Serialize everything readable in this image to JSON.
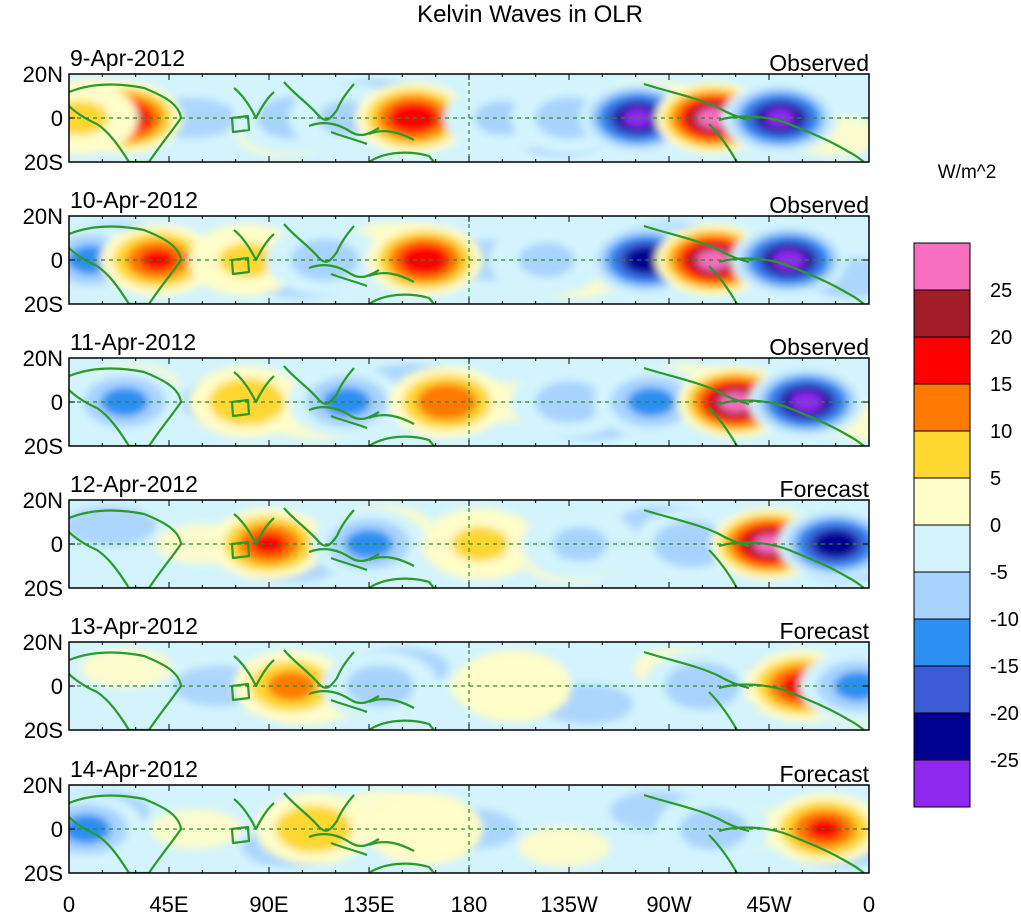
{
  "chart_data": {
    "type": "heatmap",
    "title": "Kelvin Waves in OLR",
    "variable": "OLR anomaly (Kelvin wave filtered)",
    "units": "W/m^2",
    "x_ticks": [
      "0",
      "45E",
      "90E",
      "135E",
      "180",
      "135W",
      "90W",
      "45W",
      "0"
    ],
    "y_ticks": [
      "20N",
      "0",
      "20S"
    ],
    "colorbar": {
      "labels": [
        "25",
        "20",
        "15",
        "10",
        "5",
        "0",
        "-5",
        "-10",
        "-15",
        "-20",
        "-25"
      ],
      "bins": [
        {
          "range": ">25",
          "color": "#f76ebf"
        },
        {
          "range": "20 to 25",
          "color": "#a21d27"
        },
        {
          "range": "15 to 20",
          "color": "#ff0000"
        },
        {
          "range": "10 to 15",
          "color": "#ff7a00"
        },
        {
          "range": "5 to 10",
          "color": "#ffd731"
        },
        {
          "range": "0 to 5",
          "color": "#fffdc8"
        },
        {
          "range": "-5 to 0",
          "color": "#d3f4fd"
        },
        {
          "range": "-10 to -5",
          "color": "#a8d3fe"
        },
        {
          "range": "-15 to -10",
          "color": "#2c8ff2"
        },
        {
          "range": "-20 to -15",
          "color": "#3c5bd6"
        },
        {
          "range": "-25 to -20",
          "color": "#000091"
        },
        {
          "range": "<-25",
          "color": "#8f29f0"
        }
      ]
    },
    "panels": [
      {
        "date": "9-Apr-2012",
        "label": "Observed",
        "anomalies": [
          {
            "lon_e": 25,
            "lat": 0,
            "value": 22
          },
          {
            "lon_e": 5,
            "lat": 0,
            "value": 6
          },
          {
            "lon_e": 100,
            "lat": 0,
            "value": -8
          },
          {
            "lon_e": 125,
            "lat": 0,
            "value": -6
          },
          {
            "lon_e": 155,
            "lat": 0,
            "value": 20
          },
          {
            "lon_e": 195,
            "lat": 0,
            "value": -6
          },
          {
            "lon_e": 225,
            "lat": 0,
            "value": -8
          },
          {
            "lon_e": 256,
            "lat": 0,
            "value": -26
          },
          {
            "lon_e": 290,
            "lat": 0,
            "value": 27
          },
          {
            "lon_e": 320,
            "lat": 0,
            "value": -26
          }
        ]
      },
      {
        "date": "10-Apr-2012",
        "label": "Observed",
        "anomalies": [
          {
            "lon_e": 10,
            "lat": 0,
            "value": -12
          },
          {
            "lon_e": 40,
            "lat": 0,
            "value": 16
          },
          {
            "lon_e": 80,
            "lat": 0,
            "value": 6
          },
          {
            "lon_e": 115,
            "lat": 0,
            "value": -8
          },
          {
            "lon_e": 160,
            "lat": 0,
            "value": 20
          },
          {
            "lon_e": 215,
            "lat": 0,
            "value": -6
          },
          {
            "lon_e": 260,
            "lat": 0,
            "value": -25
          },
          {
            "lon_e": 290,
            "lat": 0,
            "value": 27
          },
          {
            "lon_e": 324,
            "lat": 0,
            "value": -27
          }
        ]
      },
      {
        "date": "11-Apr-2012",
        "label": "Observed",
        "anomalies": [
          {
            "lon_e": 25,
            "lat": 0,
            "value": -12
          },
          {
            "lon_e": 80,
            "lat": 0,
            "value": 10
          },
          {
            "lon_e": 125,
            "lat": 0,
            "value": -12
          },
          {
            "lon_e": 170,
            "lat": 0,
            "value": 15
          },
          {
            "lon_e": 225,
            "lat": 0,
            "value": -8
          },
          {
            "lon_e": 262,
            "lat": 0,
            "value": -12
          },
          {
            "lon_e": 300,
            "lat": 0,
            "value": 27
          },
          {
            "lon_e": 332,
            "lat": 0,
            "value": -27
          }
        ]
      },
      {
        "date": "12-Apr-2012",
        "label": "Forecast",
        "anomalies": [
          {
            "lon_e": 90,
            "lat": 0,
            "value": 16
          },
          {
            "lon_e": 135,
            "lat": 0,
            "value": -12
          },
          {
            "lon_e": 185,
            "lat": 0,
            "value": 6
          },
          {
            "lon_e": 230,
            "lat": 0,
            "value": -6
          },
          {
            "lon_e": 280,
            "lat": 0,
            "value": -10
          },
          {
            "lon_e": 315,
            "lat": 0,
            "value": 26
          },
          {
            "lon_e": 345,
            "lat": 0,
            "value": -25
          }
        ]
      },
      {
        "date": "13-Apr-2012",
        "label": "Forecast",
        "anomalies": [
          {
            "lon_e": 100,
            "lat": 0,
            "value": 12
          },
          {
            "lon_e": 140,
            "lat": 0,
            "value": -8
          },
          {
            "lon_e": 200,
            "lat": 0,
            "value": 4
          },
          {
            "lon_e": 285,
            "lat": 0,
            "value": -10
          },
          {
            "lon_e": 330,
            "lat": 0,
            "value": 18
          },
          {
            "lon_e": 355,
            "lat": 0,
            "value": -12
          }
        ]
      },
      {
        "date": "14-Apr-2012",
        "label": "Forecast",
        "anomalies": [
          {
            "lon_e": 8,
            "lat": 0,
            "value": -12
          },
          {
            "lon_e": 110,
            "lat": 0,
            "value": 10
          },
          {
            "lon_e": 160,
            "lat": 0,
            "value": 4
          },
          {
            "lon_e": 290,
            "lat": 0,
            "value": -8
          },
          {
            "lon_e": 340,
            "lat": 0,
            "value": 16
          }
        ]
      }
    ]
  }
}
